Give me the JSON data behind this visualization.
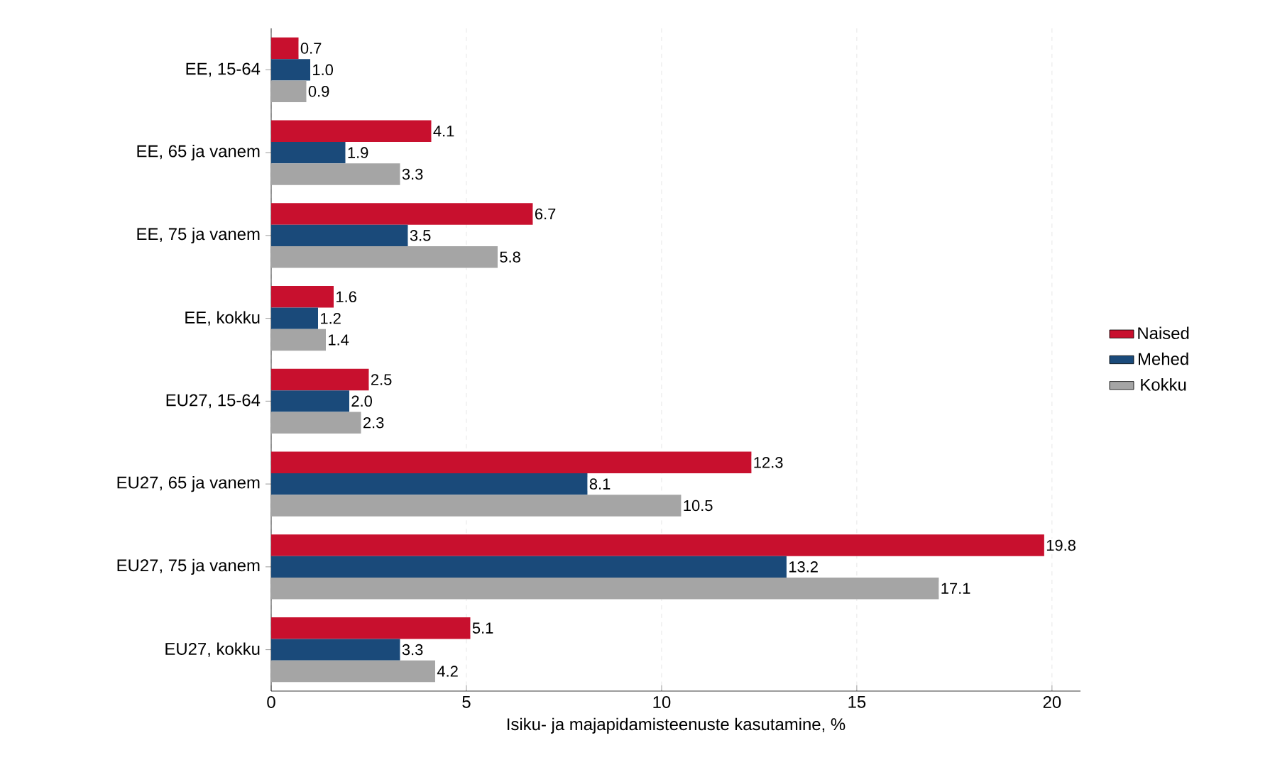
{
  "chart_data": {
    "type": "bar",
    "orientation": "horizontal",
    "xlabel": "Isiku- ja majapidamisteenuste kasutamine, %",
    "categories": [
      "EE, 15-64",
      "EE, 65 ja vanem",
      "EE, 75 ja vanem",
      "EE, kokku",
      "EU27, 15-64",
      "EU27, 65 ja vanem",
      "EU27, 75 ja vanem",
      "EU27, kokku"
    ],
    "series": [
      {
        "name": "Naised",
        "color": "#c8102e",
        "values": [
          0.7,
          4.1,
          6.7,
          1.6,
          2.5,
          12.3,
          19.8,
          5.1
        ],
        "value_labels": [
          "0.7",
          "4.1",
          "6.7",
          "1.6",
          "2.5",
          "12.3",
          "19.8",
          "5.1"
        ]
      },
      {
        "name": "Mehed",
        "color": "#1a4a7a",
        "values": [
          1.0,
          1.9,
          3.5,
          1.2,
          2.0,
          8.1,
          13.2,
          3.3
        ],
        "value_labels": [
          "1.0",
          "1.9",
          "3.5",
          "1.2",
          "2.0",
          "8.1",
          "13.2",
          "3.3"
        ]
      },
      {
        "name": "Kokku",
        "color": "#a5a5a5",
        "values": [
          0.9,
          3.3,
          5.8,
          1.4,
          2.3,
          10.5,
          17.1,
          4.2
        ],
        "value_labels": [
          "0.9",
          "3.3",
          "5.8",
          "1.4",
          "2.3",
          "10.5",
          "17.1",
          "4.2"
        ]
      }
    ],
    "xlim": [
      0,
      20.73
    ],
    "xticks": [
      0,
      5,
      10,
      15,
      20
    ],
    "grid": "x",
    "legend": "right"
  }
}
